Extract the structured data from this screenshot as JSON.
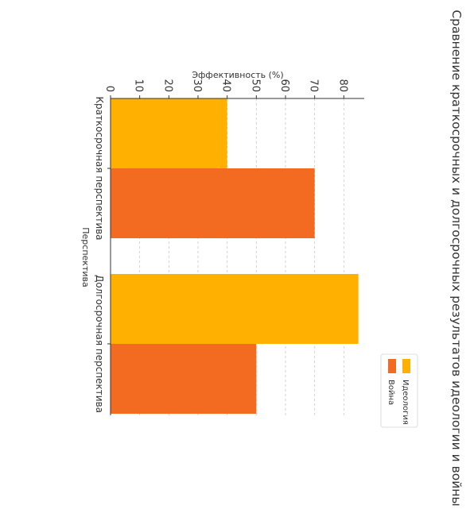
{
  "chart_data": {
    "type": "bar",
    "orientation": "rotated-90-clockwise",
    "title": "Сравнение краткосрочных и долгосрочных результатов идеологии и войны",
    "xlabel": "Перспектива",
    "ylabel": "Эффективность (%)",
    "categories": [
      "Краткосрочная перспектива",
      "Долгосрочная перспектива"
    ],
    "series": [
      {
        "name": "Идеология",
        "values": [
          40,
          85
        ],
        "color": "#FFB000"
      },
      {
        "name": "Война",
        "values": [
          70,
          50
        ],
        "color": "#F26B21"
      }
    ],
    "ylim": [
      0,
      87
    ],
    "yticks": [
      "0",
      "10",
      "20",
      "30",
      "40",
      "50",
      "60",
      "70",
      "80"
    ],
    "grid": true,
    "legend_position": "lower-right (rotated)"
  }
}
